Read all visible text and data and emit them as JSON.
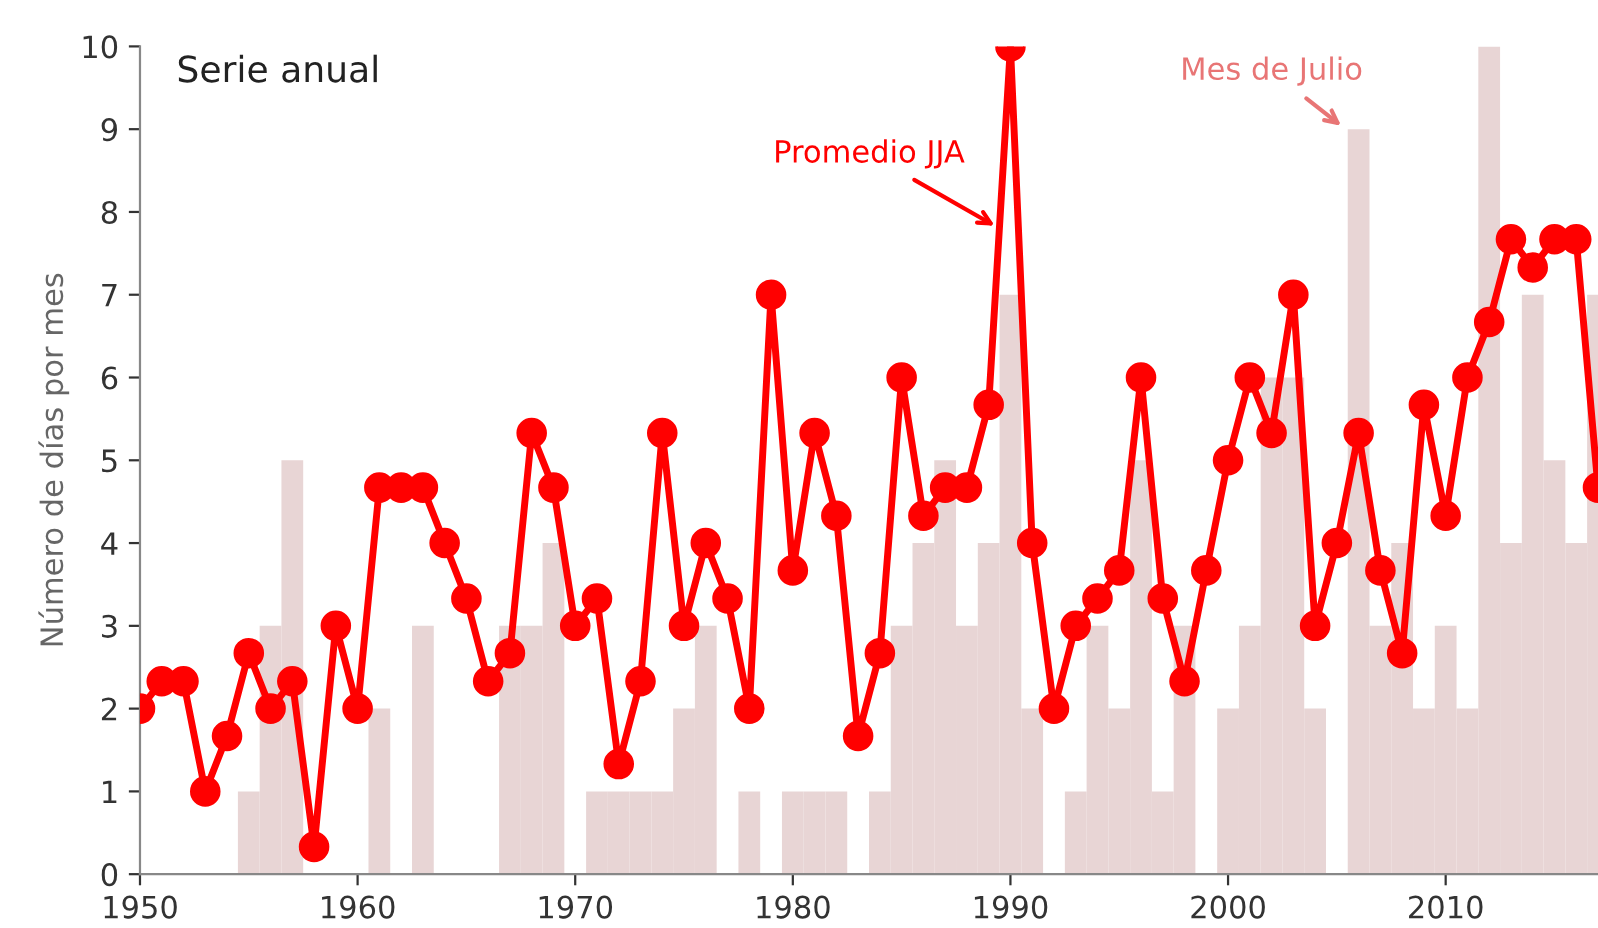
{
  "chart_data": {
    "type": "bar",
    "title": "Serie anual",
    "ylabel": "Número de días por mes",
    "x": [
      1950,
      1951,
      1952,
      1953,
      1954,
      1955,
      1956,
      1957,
      1958,
      1959,
      1960,
      1961,
      1962,
      1963,
      1964,
      1965,
      1966,
      1967,
      1968,
      1969,
      1970,
      1971,
      1972,
      1973,
      1974,
      1975,
      1976,
      1977,
      1978,
      1979,
      1980,
      1981,
      1982,
      1983,
      1984,
      1985,
      1986,
      1987,
      1988,
      1989,
      1990,
      1991,
      1992,
      1993,
      1994,
      1995,
      1996,
      1997,
      1998,
      1999,
      2000,
      2001,
      2002,
      2003,
      2004,
      2005,
      2006,
      2007,
      2008,
      2009,
      2010,
      2011,
      2012,
      2013,
      2014,
      2015,
      2016,
      2017
    ],
    "series": [
      {
        "name": "Mes de Julio",
        "color": "#e8d5d5",
        "values": [
          0,
          0,
          0,
          0,
          0,
          1,
          3,
          5,
          0,
          0,
          0,
          2,
          0,
          3,
          0,
          0,
          0,
          3,
          3,
          4,
          0,
          1,
          1,
          1,
          1,
          2,
          3,
          0,
          1,
          null,
          1,
          1,
          1,
          0,
          1,
          3,
          4,
          5,
          3,
          4,
          7,
          2,
          0,
          1,
          3,
          2,
          5,
          1,
          3,
          0,
          2,
          3,
          6,
          6,
          2,
          0,
          9,
          3,
          4,
          2,
          3,
          2,
          10,
          4,
          7,
          5,
          4,
          7
        ]
      },
      {
        "name": "Promedio JJA",
        "type": "line",
        "color": "#ff0000",
        "marker": "circle",
        "line_style": "solid",
        "values": [
          2,
          2.33,
          2.33,
          1,
          1.67,
          2.67,
          2,
          2.33,
          0.33,
          3,
          2,
          4.67,
          4.67,
          4.67,
          4,
          3.33,
          2.33,
          2.67,
          5.33,
          4.67,
          3,
          3.33,
          1.33,
          2.33,
          5.33,
          3,
          4,
          3.33,
          2,
          7,
          3.67,
          5.33,
          4.33,
          1.67,
          2.67,
          6,
          4.33,
          4.67,
          4.67,
          5.67,
          10,
          4,
          2,
          3,
          3.33,
          3.67,
          6,
          3.33,
          2.33,
          3.67,
          5,
          6,
          5.33,
          7,
          3,
          4,
          5.33,
          3.67,
          2.67,
          5.67,
          4.33,
          6,
          6.67,
          7.67,
          7.33,
          7.67,
          7.67,
          4.67
        ]
      }
    ],
    "xlim": [
      1950,
      2017
    ],
    "ylim": [
      0,
      10
    ],
    "xticks": [
      1950,
      1960,
      1970,
      1980,
      1990,
      2000,
      2010
    ],
    "yticks": [
      0,
      1,
      2,
      3,
      4,
      5,
      6,
      7,
      8,
      9,
      10
    ],
    "grid": false,
    "legend": false
  }
}
